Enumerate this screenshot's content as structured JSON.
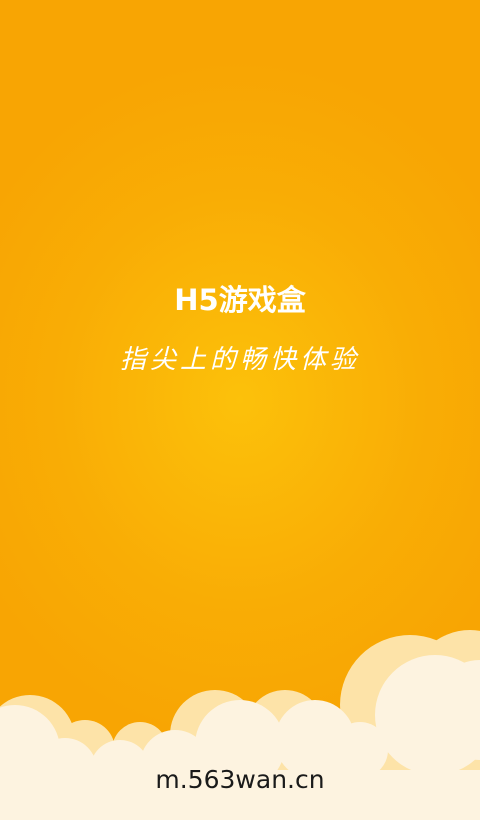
{
  "splash": {
    "title": "H5游戏盒",
    "slogan": "指尖上的畅快体验",
    "url": "m.563wan.cn"
  },
  "colors": {
    "background_center": "#fcc10a",
    "background_edge": "#f8a503",
    "cloud_back": "#fde3a8",
    "cloud_front": "#fdf3e0",
    "text_light": "#ffffff",
    "text_dark": "#1a1a1a"
  }
}
